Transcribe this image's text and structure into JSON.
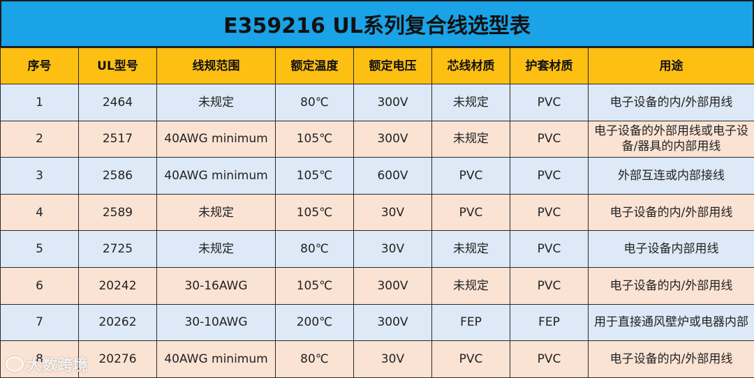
{
  "title": "E359216 UL系列复合线选型表",
  "columns": [
    "序号",
    "UL型号",
    "线规范围",
    "额定温度",
    "额定电压",
    "芯线材质",
    "护套材质",
    "用途"
  ],
  "rows": [
    [
      "1",
      "2464",
      "未规定",
      "80℃",
      "300V",
      "未规定",
      "PVC",
      "电子设备的内/外部用线"
    ],
    [
      "2",
      "2517",
      "40AWG minimum",
      "105℃",
      "300V",
      "未规定",
      "PVC",
      "电子设备的外部用线或电子设备/器具的内部用线"
    ],
    [
      "3",
      "2586",
      "40AWG minimum",
      "105℃",
      "600V",
      "PVC",
      "PVC",
      "外部互连或内部接线"
    ],
    [
      "4",
      "2589",
      "未规定",
      "105℃",
      "30V",
      "PVC",
      "PVC",
      "电子设备的内/外部用线"
    ],
    [
      "5",
      "2725",
      "未规定",
      "80℃",
      "30V",
      "未规定",
      "PVC",
      "电子设备内部用线"
    ],
    [
      "6",
      "20242",
      "30-16AWG",
      "105℃",
      "300V",
      "未规定",
      "PVC",
      "电子设备的内/外部用线"
    ],
    [
      "7",
      "20262",
      "30-10AWG",
      "200℃",
      "300V",
      "FEP",
      "FEP",
      "用于直接通风壁炉或电器内部"
    ],
    [
      "8",
      "20276",
      "40AWG minimum",
      "80℃",
      "30V",
      "PVC",
      "PVC",
      "电子设备的内/外部用线"
    ]
  ],
  "watermark": "大数跨境",
  "colors": {
    "title_bg": "#1aa3e6",
    "header_bg": "#fdbf12",
    "row_odd": "#dde9f6",
    "row_even": "#fbe3d4"
  }
}
